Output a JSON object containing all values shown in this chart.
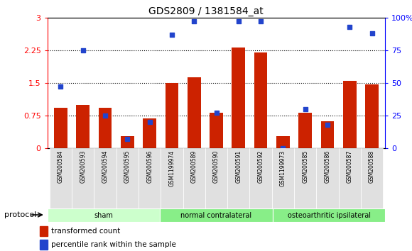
{
  "title": "GDS2809 / 1381584_at",
  "samples": [
    "GSM200584",
    "GSM200593",
    "GSM200594",
    "GSM200595",
    "GSM200596",
    "GSM1199974",
    "GSM200589",
    "GSM200590",
    "GSM200591",
    "GSM200592",
    "GSM1199973",
    "GSM200585",
    "GSM200586",
    "GSM200587",
    "GSM200588"
  ],
  "red_values": [
    0.92,
    1.0,
    0.92,
    0.28,
    0.68,
    1.5,
    1.63,
    0.82,
    2.32,
    2.2,
    0.28,
    0.82,
    0.62,
    1.55,
    1.46
  ],
  "blue_pct": [
    47,
    75,
    25,
    7,
    20,
    87,
    97,
    27,
    97,
    97,
    0,
    30,
    18,
    93,
    88
  ],
  "groups": [
    {
      "label": "sham",
      "start": 0,
      "end": 5,
      "color": "#ccffcc"
    },
    {
      "label": "normal contralateral",
      "start": 5,
      "end": 10,
      "color": "#88ee88"
    },
    {
      "label": "osteoarthritic ipsilateral",
      "start": 10,
      "end": 15,
      "color": "#88ee88"
    }
  ],
  "ylim_left": [
    0,
    3.0
  ],
  "ylim_right": [
    0,
    100
  ],
  "yticks_left": [
    0,
    0.75,
    1.5,
    2.25,
    3.0
  ],
  "yticks_right": [
    0,
    25,
    50,
    75,
    100
  ],
  "ytick_labels_left": [
    "0",
    "0.75",
    "1.5",
    "2.25",
    "3"
  ],
  "ytick_labels_right": [
    "0",
    "25",
    "50",
    "75",
    "100%"
  ],
  "bar_color_red": "#cc2200",
  "bar_color_blue": "#2244cc",
  "gridline_vals": [
    0.75,
    1.5,
    2.25
  ],
  "protocol_label": "protocol",
  "legend_red": "transformed count",
  "legend_blue": "percentile rank within the sample",
  "group_colors": [
    "#ccffcc",
    "#88ee88",
    "#88ee88"
  ]
}
